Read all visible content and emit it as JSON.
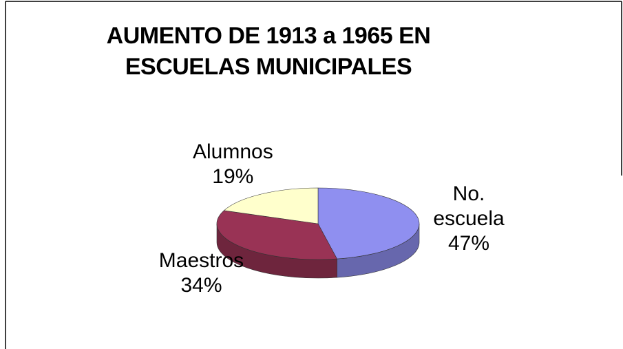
{
  "chart_data": {
    "type": "pie",
    "title": "AUMENTO DE 1913 a 1965 EN ESCUELAS MUNICIPALES",
    "categories": [
      "No. escuela",
      "Maestros",
      "Alumnos"
    ],
    "values": [
      47,
      34,
      19
    ],
    "value_labels": [
      "47%",
      "34%",
      "19%"
    ],
    "colors": [
      "#8f8ff0",
      "#993355",
      "#ffffcc"
    ]
  }
}
